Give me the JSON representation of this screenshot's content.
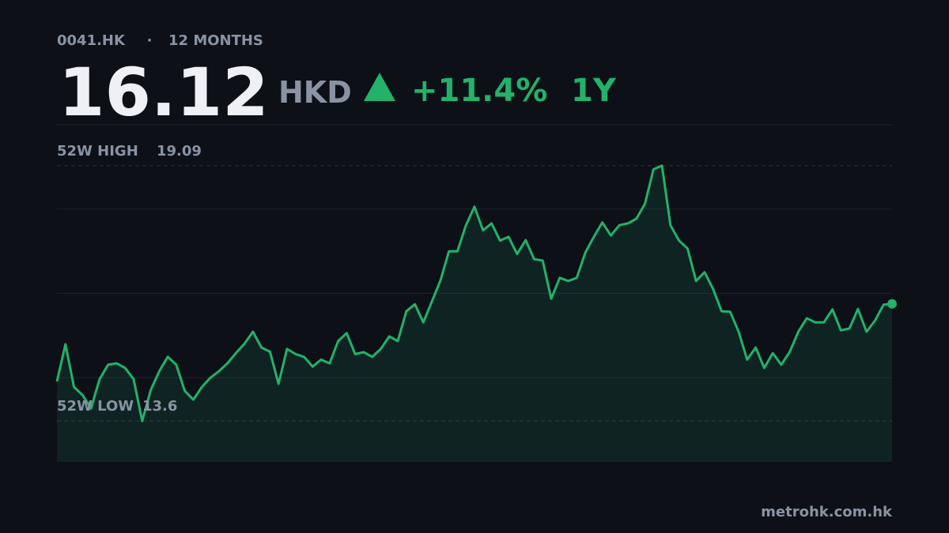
{
  "header": {
    "ticker": "0041.HK",
    "separator": "·",
    "period": "12 MONTHS",
    "price": "16.12",
    "currency": "HKD",
    "change": "+11.4%",
    "range": "1Y"
  },
  "chart_data": {
    "type": "line",
    "color": "#22b26a",
    "values": [
      14.45,
      15.25,
      14.33,
      14.16,
      13.87,
      14.5,
      14.81,
      14.84,
      14.74,
      14.5,
      13.6,
      14.26,
      14.67,
      14.98,
      14.81,
      14.25,
      14.06,
      14.33,
      14.53,
      14.67,
      14.84,
      15.06,
      15.26,
      15.52,
      15.18,
      15.09,
      14.4,
      15.15,
      15.04,
      14.98,
      14.77,
      14.92,
      14.84,
      15.32,
      15.49,
      15.04,
      15.08,
      14.98,
      15.15,
      15.42,
      15.32,
      15.96,
      16.11,
      15.72,
      16.17,
      16.62,
      17.25,
      17.25,
      17.81,
      18.21,
      17.7,
      17.85,
      17.48,
      17.56,
      17.19,
      17.49,
      17.08,
      17.05,
      16.23,
      16.68,
      16.61,
      16.68,
      17.22,
      17.56,
      17.87,
      17.59,
      17.81,
      17.85,
      17.95,
      18.27,
      19.01,
      19.09,
      17.81,
      17.48,
      17.31,
      16.61,
      16.8,
      16.44,
      15.96,
      15.95,
      15.52,
      14.92,
      15.18,
      14.74,
      15.06,
      14.81,
      15.09,
      15.52,
      15.81,
      15.72,
      15.72,
      16.0,
      15.55,
      15.59,
      16.01,
      15.52,
      15.76,
      16.1,
      16.12
    ],
    "ylim": [
      12.72,
      19.97
    ],
    "annotations": [
      {
        "label": "52W HIGH",
        "value": 19.09
      },
      {
        "label": "52W LOW",
        "value": 13.6
      }
    ]
  },
  "footer": "metrohk.com.hk"
}
